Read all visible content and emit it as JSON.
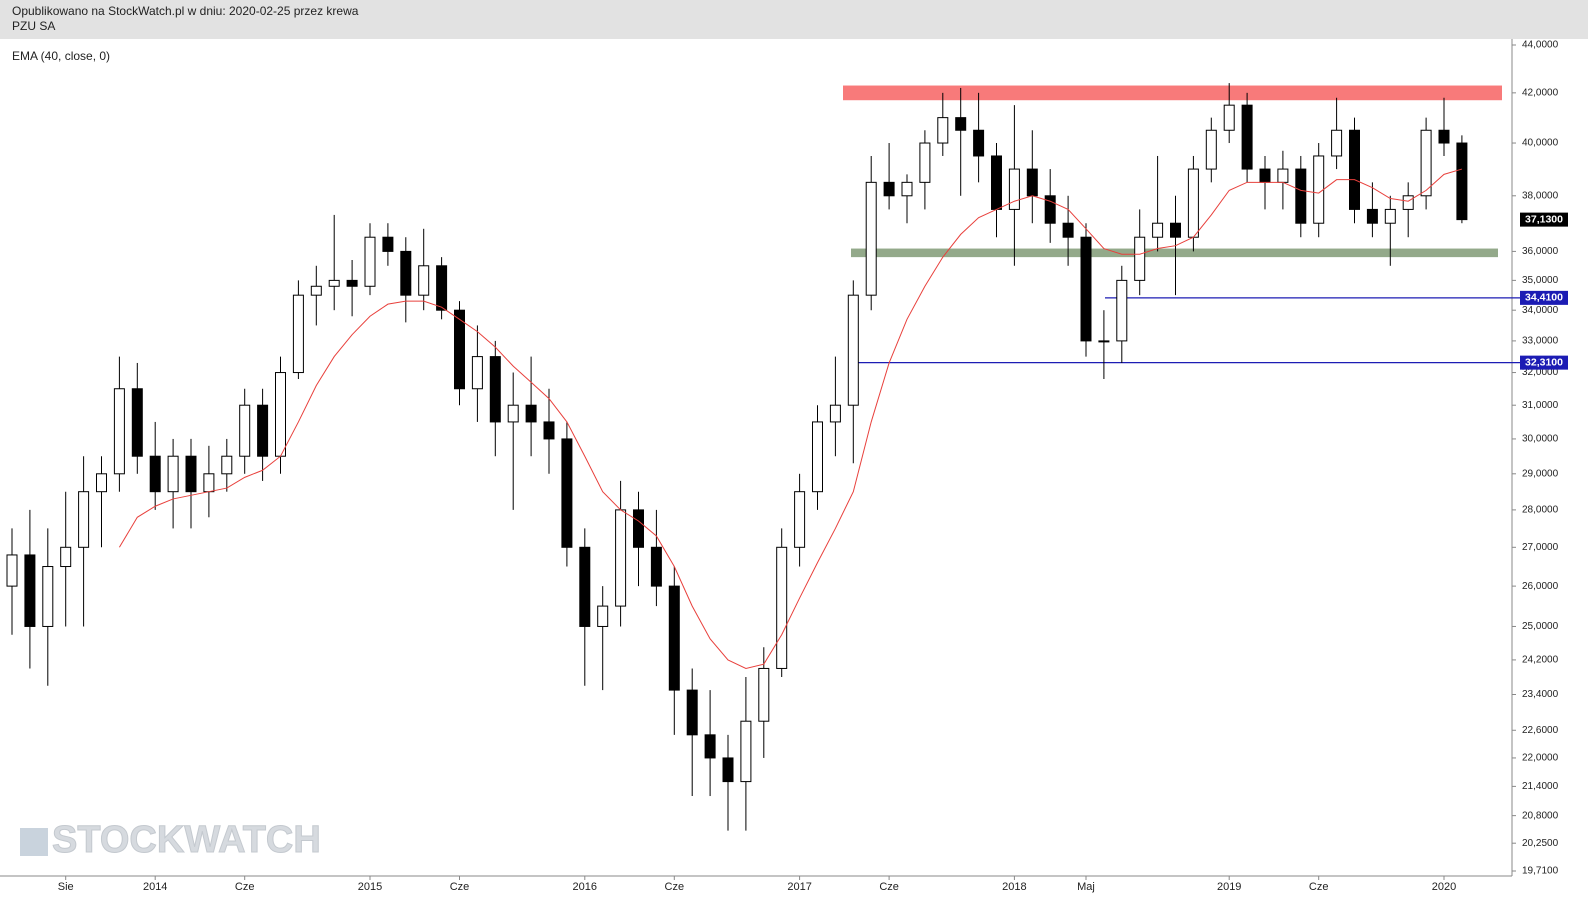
{
  "header": {
    "line1": "Opublikowano na StockWatch.pl w dniu: 2020-02-25 przez krewa",
    "line2": "PZU SA"
  },
  "watermark": "STOCKWATCH",
  "chart_data": {
    "type": "candlestick",
    "indicator_label": "EMA (40, close, 0)",
    "log_scale": true,
    "grid": false,
    "up_color": "#ffffff",
    "down_color": "#000000",
    "categories": [
      null,
      null,
      null,
      "Sie",
      null,
      null,
      null,
      null,
      "2014",
      null,
      null,
      null,
      null,
      "Cze",
      null,
      null,
      null,
      null,
      null,
      null,
      "2015",
      null,
      null,
      null,
      null,
      "Cze",
      null,
      null,
      null,
      null,
      null,
      null,
      "2016",
      null,
      null,
      null,
      null,
      "Cze",
      null,
      null,
      null,
      null,
      null,
      null,
      "2017",
      null,
      null,
      null,
      null,
      "Cze",
      null,
      null,
      null,
      null,
      null,
      null,
      "2018",
      null,
      null,
      null,
      "Maj",
      null,
      null,
      null,
      null,
      null,
      null,
      null,
      "2019",
      null,
      null,
      null,
      null,
      "Cze",
      null,
      null,
      null,
      null,
      null,
      null,
      "2020",
      null
    ],
    "open": [
      26,
      26.8,
      25,
      26.5,
      27,
      28.5,
      29,
      31.5,
      29.5,
      28.5,
      29.5,
      28.5,
      29,
      29.5,
      31,
      29.5,
      32,
      34.5,
      34.8,
      35,
      34.8,
      36.5,
      36,
      34.5,
      35.5,
      34,
      31.5,
      32.5,
      30.5,
      31,
      30.5,
      30,
      27,
      25,
      25.5,
      28,
      27,
      26,
      23.5,
      22.5,
      22,
      21.5,
      22.8,
      24,
      27,
      28.5,
      30.5,
      31,
      34.5,
      38.5,
      38,
      38.5,
      40,
      41,
      40.5,
      39.5,
      37.5,
      39,
      38,
      37,
      36.5,
      33,
      33,
      35,
      36.5,
      37,
      36.5,
      39,
      40.5,
      41.5,
      39,
      38.5,
      39,
      37,
      39.5,
      40.5,
      37.5,
      37,
      37.5,
      38,
      40.5,
      40
    ],
    "high": [
      27.5,
      28,
      27.5,
      28.5,
      29.5,
      29.5,
      32.5,
      32.3,
      30.5,
      30,
      30,
      29.8,
      30,
      31.5,
      31.5,
      32.5,
      35,
      35.5,
      37.3,
      35.7,
      37,
      37,
      36.5,
      36.8,
      35.8,
      34.3,
      33.5,
      33,
      32,
      32.5,
      31.5,
      30.5,
      27.5,
      26,
      28.8,
      28.5,
      28,
      26.5,
      24,
      23.5,
      22.5,
      23.8,
      24.5,
      27.5,
      29,
      31,
      32.5,
      35,
      39.5,
      40,
      38.8,
      40.5,
      42,
      42.2,
      42,
      40,
      41.5,
      40.5,
      39,
      38,
      37,
      34,
      35.5,
      37.5,
      39.5,
      38,
      39.5,
      41,
      42.4,
      42,
      39.5,
      39.7,
      39.5,
      40,
      41.8,
      41,
      38.5,
      38,
      38.5,
      41,
      41.8,
      40.3
    ],
    "low": [
      24.8,
      24,
      23.6,
      25,
      25,
      27,
      28.5,
      29,
      28,
      27.5,
      27.5,
      27.8,
      28.5,
      29,
      28.8,
      29,
      31.8,
      33.5,
      34,
      33.8,
      34.5,
      35.5,
      33.6,
      34,
      33.7,
      31,
      30.5,
      29.5,
      28,
      29.5,
      29,
      26.5,
      23.6,
      23.5,
      25,
      26,
      25.5,
      22.5,
      21.2,
      21.2,
      20.5,
      20.5,
      22,
      23.8,
      26.5,
      28,
      29.5,
      29.3,
      34,
      37.5,
      37,
      37.5,
      39.5,
      38,
      38.5,
      36.5,
      35.5,
      37,
      36.3,
      35.5,
      32.5,
      31.8,
      32.3,
      34.5,
      36,
      34.5,
      36,
      38.5,
      40,
      38.5,
      37.5,
      37.5,
      36.5,
      36.5,
      39,
      37,
      36.5,
      35.5,
      36.5,
      37.5,
      39.5,
      37
    ],
    "close": [
      26.8,
      25,
      26.5,
      27,
      28.5,
      29,
      31.5,
      29.5,
      28.5,
      29.5,
      28.5,
      29,
      29.5,
      31,
      29.5,
      32,
      34.5,
      34.8,
      35,
      34.8,
      36.5,
      36,
      34.5,
      35.5,
      34,
      31.5,
      32.5,
      30.5,
      31,
      30.5,
      30,
      27,
      25,
      25.5,
      28,
      27,
      26,
      23.5,
      22.5,
      22,
      21.5,
      22.8,
      24,
      27,
      28.5,
      30.5,
      31,
      34.5,
      38.5,
      38,
      38.5,
      40,
      41,
      40.5,
      39.5,
      37.5,
      39,
      38,
      37,
      36.5,
      33,
      33,
      35,
      36.5,
      37,
      36.5,
      39,
      40.5,
      41.5,
      39,
      38.5,
      39,
      37,
      39.5,
      40.5,
      37.5,
      37,
      37.5,
      38,
      40.5,
      40,
      37.13
    ],
    "series": [
      {
        "name": "EMA (40, close, 0)",
        "color": "#e8403c",
        "values": [
          null,
          null,
          null,
          null,
          null,
          null,
          27,
          27.8,
          28.1,
          28.3,
          28.4,
          28.5,
          28.6,
          28.9,
          29.1,
          29.5,
          30.5,
          31.6,
          32.5,
          33.2,
          33.8,
          34.2,
          34.3,
          34.3,
          34.1,
          33.7,
          33.3,
          32.8,
          32.2,
          31.7,
          31.2,
          30.5,
          29.5,
          28.5,
          28,
          27.7,
          27.3,
          26.5,
          25.5,
          24.7,
          24.2,
          24,
          24.1,
          24.8,
          25.7,
          26.6,
          27.5,
          28.5,
          30.5,
          32.3,
          33.7,
          34.8,
          35.8,
          36.6,
          37.2,
          37.5,
          37.8,
          38,
          37.8,
          37.5,
          36.8,
          36.1,
          35.9,
          35.9,
          36.1,
          36.2,
          36.5,
          37.3,
          38.2,
          38.5,
          38.5,
          38.5,
          38.2,
          38.1,
          38.6,
          38.6,
          38.3,
          37.9,
          37.8,
          38.2,
          38.8,
          39
        ]
      }
    ],
    "zones": [
      {
        "low": 41.7,
        "high": 42.3,
        "color": "#f87a7a"
      },
      {
        "low": 35.8,
        "high": 36.1,
        "color": "#93a98a"
      }
    ],
    "hlines": [
      {
        "value": 34.41,
        "label": "34,4100",
        "color": "#1c1cb4"
      },
      {
        "value": 32.31,
        "label": "32,3100",
        "color": "#1c1cb4"
      }
    ],
    "last_price": {
      "value": 37.13,
      "label": "37,1300",
      "color": "#000000"
    },
    "ylim": [
      19.71,
      44
    ],
    "yticks": [
      {
        "value": 44,
        "label": "44,0000"
      },
      {
        "value": 42,
        "label": "42,0000"
      },
      {
        "value": 40,
        "label": "40,0000"
      },
      {
        "value": 38,
        "label": "38,0000"
      },
      {
        "value": 36,
        "label": "36,0000"
      },
      {
        "value": 35,
        "label": "35,0000"
      },
      {
        "value": 34,
        "label": "34,0000"
      },
      {
        "value": 33,
        "label": "33,0000"
      },
      {
        "value": 32,
        "label": "32,0000"
      },
      {
        "value": 31,
        "label": "31,0000"
      },
      {
        "value": 30,
        "label": "30,0000"
      },
      {
        "value": 29,
        "label": "29,0000"
      },
      {
        "value": 28,
        "label": "28,0000"
      },
      {
        "value": 27,
        "label": "27,0000"
      },
      {
        "value": 26,
        "label": "26,0000"
      },
      {
        "value": 25,
        "label": "25,0000"
      },
      {
        "value": 24.2,
        "label": "24,2000"
      },
      {
        "value": 23.4,
        "label": "23,4000"
      },
      {
        "value": 22.6,
        "label": "22,6000"
      },
      {
        "value": 22,
        "label": "22,0000"
      },
      {
        "value": 21.4,
        "label": "21,4000"
      },
      {
        "value": 20.8,
        "label": "20,8000"
      },
      {
        "value": 20.25,
        "label": "20,2500"
      },
      {
        "value": 19.71,
        "label": "19,7100"
      }
    ]
  }
}
